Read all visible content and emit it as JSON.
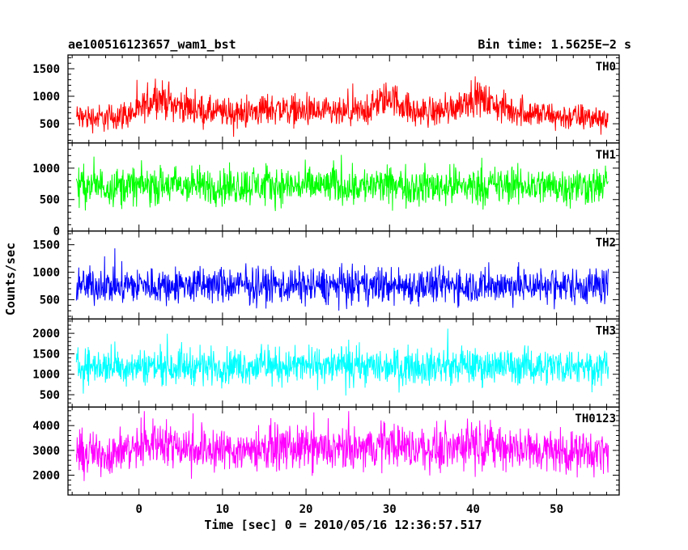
{
  "chart_data": {
    "type": "line",
    "title": "ae100516123657_wam1_bst",
    "bin_time_label": "Bin time: 1.5625E−2 s",
    "xlabel": "Time [sec] 0 = 2010/05/16 12:36:57.517",
    "ylabel": "Counts/sec",
    "xlim": [
      -8.5,
      57.5
    ],
    "x_data_range": [
      -7.5,
      56.2
    ],
    "x_ticks": [
      0,
      10,
      20,
      30,
      40,
      50
    ],
    "x_tick_labels": [
      "0",
      "10",
      "20",
      "30",
      "40",
      "50"
    ],
    "x_minor_step": 2,
    "grid": false,
    "legend": "none",
    "panels": [
      {
        "name": "TH0",
        "color": "#ff0000",
        "ylim": [
          150,
          1750
        ],
        "y_ticks": [
          500,
          1000,
          1500
        ],
        "y_tick_labels": [
          "500",
          "1000",
          "1500"
        ],
        "y_minor_step": 100,
        "baseline_envelope": {
          "t": [
            -7.5,
            -4,
            0,
            2,
            4,
            8,
            12,
            16,
            20,
            24,
            27,
            30,
            33,
            37,
            40,
            44,
            50,
            56.2
          ],
          "mean": [
            620,
            600,
            720,
            1000,
            860,
            720,
            680,
            780,
            720,
            680,
            720,
            1000,
            700,
            750,
            1000,
            760,
            630,
            600
          ],
          "spread": [
            380,
            360,
            400,
            470,
            430,
            400,
            390,
            420,
            400,
            390,
            400,
            470,
            400,
            410,
            470,
            410,
            370,
            360
          ]
        }
      },
      {
        "name": "TH1",
        "color": "#00ff00",
        "ylim": [
          0,
          1400
        ],
        "y_ticks": [
          0,
          500,
          1000
        ],
        "y_tick_labels": [
          "0",
          "500",
          "1000"
        ],
        "y_minor_step": 100,
        "baseline_envelope": {
          "t": [
            -7.5,
            56.2
          ],
          "mean": [
            720,
            720
          ],
          "spread": [
            440,
            440
          ]
        }
      },
      {
        "name": "TH2",
        "color": "#0000ff",
        "ylim": [
          150,
          1750
        ],
        "y_ticks": [
          500,
          1000,
          1500
        ],
        "y_tick_labels": [
          "500",
          "1000",
          "1500"
        ],
        "y_minor_step": 100,
        "baseline_envelope": {
          "t": [
            -7.5,
            56.2
          ],
          "mean": [
            760,
            760
          ],
          "spread": [
            480,
            480
          ]
        }
      },
      {
        "name": "TH3",
        "color": "#00ffff",
        "ylim": [
          200,
          2350
        ],
        "y_ticks": [
          500,
          1000,
          1500,
          2000
        ],
        "y_tick_labels": [
          "500",
          "1000",
          "1500",
          "2000"
        ],
        "y_minor_step": 100,
        "baseline_envelope": {
          "t": [
            -7.5,
            56.2
          ],
          "mean": [
            1200,
            1200
          ],
          "spread": [
            640,
            640
          ]
        }
      },
      {
        "name": "TH0123",
        "color": "#ff00ff",
        "ylim": [
          1200,
          4750
        ],
        "y_ticks": [
          2000,
          3000,
          4000
        ],
        "y_tick_labels": [
          "2000",
          "3000",
          "4000"
        ],
        "y_minor_step": 200,
        "baseline_envelope": {
          "t": [
            -7.5,
            -4,
            0,
            2,
            4,
            8,
            12,
            16,
            20,
            24,
            27,
            30,
            33,
            37,
            40,
            44,
            50,
            56.2
          ],
          "mean": [
            2900,
            2850,
            3100,
            3400,
            3250,
            3050,
            3000,
            3150,
            3050,
            3000,
            3050,
            3350,
            3050,
            3100,
            3350,
            3100,
            2950,
            2900
          ],
          "spread": [
            1250,
            1250,
            1300,
            1350,
            1300,
            1250,
            1250,
            1300,
            1250,
            1250,
            1250,
            1350,
            1250,
            1300,
            1350,
            1300,
            1250,
            1250
          ]
        }
      }
    ]
  }
}
